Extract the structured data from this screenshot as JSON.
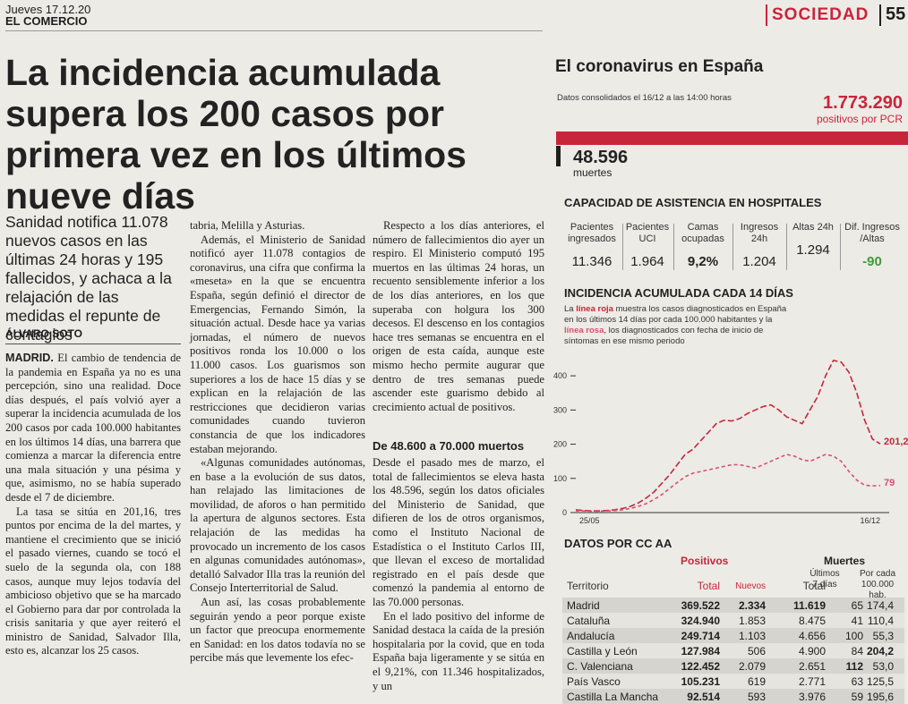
{
  "header": {
    "date": "Jueves 17.12.20",
    "paper": "EL COMERCIO",
    "section": "SOCIEDAD",
    "page": "55"
  },
  "article": {
    "headline": "La incidencia acumulada supera los 200 casos por primera vez en los últimos nueve días",
    "subhead": "Sanidad notifica 11.078 nuevos casos en las últimas 24 horas y 195 fallecidos, y achaca a la relajación de las medidas el repunte de contagios",
    "byline": "ÁLVARO SOTO",
    "city": "MADRID.",
    "col1_p1": "El cambio de tendencia de la pandemia en España ya no es una percepción, sino una realidad. Doce días después, el país volvió ayer a superar la incidencia acumulada de los 200 casos por cada 100.000 habitantes en los últimos 14 días, una barrera que comienza a marcar la diferencia entre una mala situación y una pésima y que, asimismo, no se había superado desde el 7 de diciembre.",
    "col1_p2": "La tasa se sitúa en 201,16, tres puntos por encima de la del martes, y mantiene el crecimiento que se inició el pasado viernes, cuando se tocó el suelo de la segunda ola, con 188 casos, aunque muy lejos todavía del ambicioso objetivo que se ha marcado el Gobierno para dar por controlada la crisis sanitaria y que ayer reiteró el ministro de Sanidad, Salvador Illa, esto es, alcanzar los 25 casos.",
    "col2_p1": "tabria, Melilla y Asturias.",
    "col2_p2": "Además, el Ministerio de Sanidad notificó ayer 11.078 contagios de coronavirus, una cifra que confirma la «meseta» en la que se encuentra España, según definió el director de Emergencias, Fernando Simón, la situación actual. Desde hace ya varias jornadas, el número de nuevos positivos ronda los 10.000 o los 11.000 casos. Los guarismos son superiores a los de hace 15 días y se explican en la relajación de las restricciones que decidieron varias comunidades cuando tuvieron constancia de que los indicadores estaban mejorando.",
    "col2_p3": "«Algunas comunidades autónomas, en base a la evolución de sus datos, han relajado las limitaciones de movilidad, de aforos o han permitido la apertura de algunos sectores. Esta relajación de las medidas ha provocado un incremento de los casos en algunas comunidades autónomas», detalló Salvador Illa tras la reunión del Consejo Interterritorial de Salud.",
    "col2_p4": "Aun así, las cosas probablemente seguirán yendo a peor porque existe un factor que preocupa enormemente en Sanidad: en los datos todavía no se percibe más que levemente los efec-",
    "col3_p1": "Respecto a los días anteriores, el número de fallecimientos dio ayer un respiro. El Ministerio computó 195 muertos en las últimas 24 horas, un recuento sensiblemente inferior a los de los días anteriores, en los que superaba con holgura los 300 decesos. El descenso en los contagios hace tres semanas se encuentra en el origen de esta caída, aunque este mismo hecho permite augurar que dentro de tres semanas puede ascender este guarismo debido al crecimiento actual de positivos.",
    "col3_sub": "De 48.600 a 70.000 muertos",
    "col3_p2": "Desde el pasado mes de marzo, el total de fallecimientos se eleva hasta los 48.596, según los datos oficiales del Ministerio de Sanidad, que difieren de los de otros organismos, como el Instituto Nacional de Estadística o el Instituto Carlos III, que llevan el exceso de mortalidad registrado en el país desde que comenzó la pandemia al entorno de las 70.000 personas.",
    "col3_p3": "En el lado positivo del informe de Sanidad destaca la caída de la presión hospitalaria por la covid, que en toda España baja ligeramente y se sitúa en el 9,21%, con 11.346 hospitalizados, y un"
  },
  "graphic": {
    "title": "El coronavirus en España",
    "datos": "Datos consolidados el 16/12 a las 14:00 horas",
    "positivos": "1.773.290",
    "positivos_label": "positivos por PCR",
    "muertes": "48.596",
    "muertes_label": "muertes",
    "hosp_title": "CAPACIDAD DE ASISTENCIA EN HOSPITALES",
    "hosp": [
      {
        "label": "Pacientes ingresados",
        "value": "11.346"
      },
      {
        "label": "Pacientes UCI",
        "value": "1.964"
      },
      {
        "label": "Camas ocupadas",
        "value": "9,2%"
      },
      {
        "label": "Ingresos 24h",
        "value": "1.204"
      },
      {
        "label": "Altas 24h",
        "value": "1.294"
      },
      {
        "label": "Dif. Ingresos /Altas",
        "value": "-90"
      }
    ],
    "colors": {
      "red": "#c8253b",
      "green": "#3f9a3a",
      "pink": "#d9506f"
    },
    "inc_title": "INCIDENCIA ACUMULADA CADA 14 DÍAS",
    "inc_desc_1": "La ",
    "inc_desc_red": "línea roja",
    "inc_desc_2": " muestra los casos diagnosticados en España en los últimos 14 días por cada 100.000 habitantes y la ",
    "inc_desc_pink": "línea rosa",
    "inc_desc_3": ", los diagnosticados con fecha de inicio de síntomas en ese mismo periodo",
    "cc_title": "DATOS POR CC AA",
    "table": {
      "group_pos": "Positivos",
      "group_mue": "Muertes",
      "col_territorio": "Territorio",
      "col_total": "Total",
      "col_nuevos": "Nuevos",
      "col_mtotal": "Total",
      "col_7dias": "Últimos 7 días",
      "col_percada": "Por cada 100.000 hab.",
      "rows": [
        {
          "name": "Madrid",
          "total": "369.522",
          "nuevos": "2.334",
          "mtotal": "11.619",
          "u7": "65",
          "pc": "174,4"
        },
        {
          "name": "Cataluña",
          "total": "324.940",
          "nuevos": "1.853",
          "mtotal": "8.475",
          "u7": "41",
          "pc": "110,4"
        },
        {
          "name": "Andalucía",
          "total": "249.714",
          "nuevos": "1.103",
          "mtotal": "4.656",
          "u7": "100",
          "pc": "55,3"
        },
        {
          "name": "Castilla y León",
          "total": "127.984",
          "nuevos": "506",
          "mtotal": "4.900",
          "u7": "84",
          "pc": "204,2"
        },
        {
          "name": "C. Valenciana",
          "total": "122.452",
          "nuevos": "2.079",
          "mtotal": "2.651",
          "u7": "112",
          "pc": "53,0"
        },
        {
          "name": "País Vasco",
          "total": "105.231",
          "nuevos": "619",
          "mtotal": "2.771",
          "u7": "63",
          "pc": "125,5"
        },
        {
          "name": "Castilla La Mancha",
          "total": "92.514",
          "nuevos": "593",
          "mtotal": "3.976",
          "u7": "59",
          "pc": "195,6"
        }
      ]
    }
  },
  "chart_data": {
    "type": "line",
    "title": "INCIDENCIA ACUMULADA CADA 14 DÍAS",
    "x_start_label": "25/05",
    "x_end_label": "16/12",
    "yticks": [
      0,
      100,
      200,
      300,
      400
    ],
    "ylim": [
      0,
      450
    ],
    "series": [
      {
        "name": "línea roja",
        "color": "#c8253b",
        "end_label": "201,2",
        "values": [
          8,
          6,
          5,
          5,
          6,
          8,
          12,
          18,
          28,
          42,
          60,
          85,
          110,
          140,
          170,
          185,
          210,
          235,
          260,
          270,
          268,
          275,
          290,
          300,
          310,
          315,
          300,
          280,
          270,
          260,
          300,
          340,
          400,
          445,
          440,
          410,
          350,
          270,
          215,
          201
        ]
      },
      {
        "name": "línea rosa",
        "color": "#d9506f",
        "end_label": "79",
        "values": [
          5,
          5,
          4,
          4,
          5,
          6,
          8,
          12,
          18,
          26,
          38,
          52,
          70,
          88,
          105,
          115,
          120,
          125,
          130,
          135,
          140,
          140,
          135,
          130,
          140,
          150,
          160,
          170,
          165,
          155,
          150,
          160,
          170,
          165,
          150,
          120,
          95,
          80,
          78,
          79
        ]
      }
    ]
  }
}
